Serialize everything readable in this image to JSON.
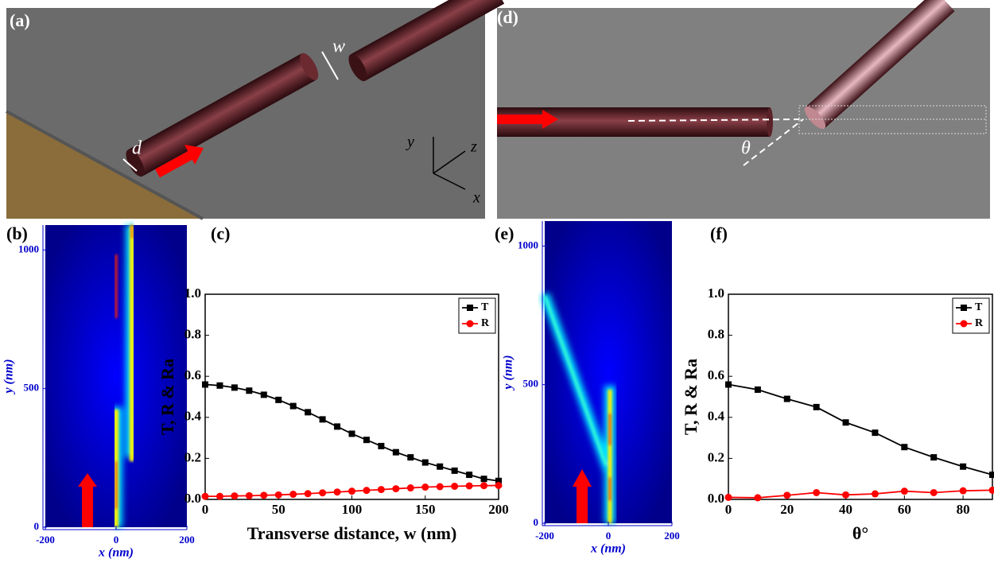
{
  "panel_labels": {
    "a": "(a)",
    "b": "(b)",
    "c": "(c)",
    "d": "(d)",
    "e": "(e)",
    "f": "(f)"
  },
  "render_a": {
    "w": "w",
    "d": "d",
    "axis_y": "y",
    "axis_z": "z",
    "axis_x": "x"
  },
  "render_d": {
    "theta": "θ"
  },
  "chart_data": [
    {
      "type": "field",
      "xlabel": "x (nm)",
      "ylabel": "y (nm)",
      "xlim": [
        -200,
        200
      ],
      "xticks": [
        -200,
        0,
        200
      ],
      "ylim": [
        0,
        1090
      ],
      "yticks": [
        0,
        500,
        1000
      ]
    },
    {
      "type": "line",
      "xlabel": "Transverse distance, w (nm)",
      "ylabel": "T, R & Ra",
      "legend": "upper right",
      "x": [
        0,
        10,
        20,
        30,
        40,
        50,
        60,
        70,
        80,
        90,
        100,
        110,
        120,
        130,
        140,
        150,
        160,
        170,
        180,
        190,
        200
      ],
      "series": [
        {
          "name": "T",
          "color": "#000000",
          "marker": "square",
          "values": [
            0.56,
            0.555,
            0.545,
            0.53,
            0.51,
            0.485,
            0.455,
            0.425,
            0.39,
            0.355,
            0.32,
            0.29,
            0.26,
            0.23,
            0.205,
            0.18,
            0.16,
            0.14,
            0.12,
            0.1,
            0.09
          ]
        },
        {
          "name": "R",
          "color": "#ff0000",
          "marker": "circle",
          "values": [
            0.015,
            0.015,
            0.017,
            0.018,
            0.02,
            0.022,
            0.025,
            0.028,
            0.032,
            0.036,
            0.04,
            0.044,
            0.048,
            0.052,
            0.056,
            0.06,
            0.062,
            0.064,
            0.066,
            0.067,
            0.068
          ]
        }
      ],
      "xlim": [
        0,
        200
      ],
      "xticks": [
        0,
        50,
        100,
        150,
        200
      ],
      "ylim": [
        0,
        1
      ],
      "yticks": [
        {
          "value": 0,
          "label": "0.0"
        },
        0.2,
        0.4,
        0.6,
        0.8,
        {
          "value": 1,
          "label": "1.0"
        }
      ]
    },
    {
      "type": "field",
      "xlabel": "x (nm)",
      "ylabel": "y (nm)",
      "xlim": [
        -200,
        200
      ],
      "xticks": [
        -200,
        0,
        200
      ],
      "ylim": [
        0,
        1090
      ],
      "yticks": [
        0,
        500,
        1000
      ]
    },
    {
      "type": "line",
      "xlabel": "θ°",
      "ylabel": "T, R & Ra",
      "legend": "upper right",
      "x": [
        0,
        10,
        20,
        30,
        40,
        50,
        60,
        70,
        80,
        90
      ],
      "series": [
        {
          "name": "T",
          "color": "#000000",
          "marker": "square",
          "values": [
            0.56,
            0.535,
            0.49,
            0.45,
            0.375,
            0.325,
            0.255,
            0.205,
            0.16,
            0.12
          ]
        },
        {
          "name": "R",
          "color": "#ff0000",
          "marker": "circle",
          "values": [
            0.01,
            0.008,
            0.02,
            0.033,
            0.022,
            0.027,
            0.04,
            0.033,
            0.042,
            0.045
          ]
        }
      ],
      "xlim": [
        0,
        90
      ],
      "xticks": [
        0,
        20,
        40,
        60,
        80
      ],
      "ylim": [
        0,
        1
      ],
      "yticks": [
        {
          "value": 0,
          "label": "0.0"
        },
        0.2,
        0.4,
        0.6,
        0.8,
        {
          "value": 1,
          "label": "1.0"
        }
      ]
    }
  ]
}
